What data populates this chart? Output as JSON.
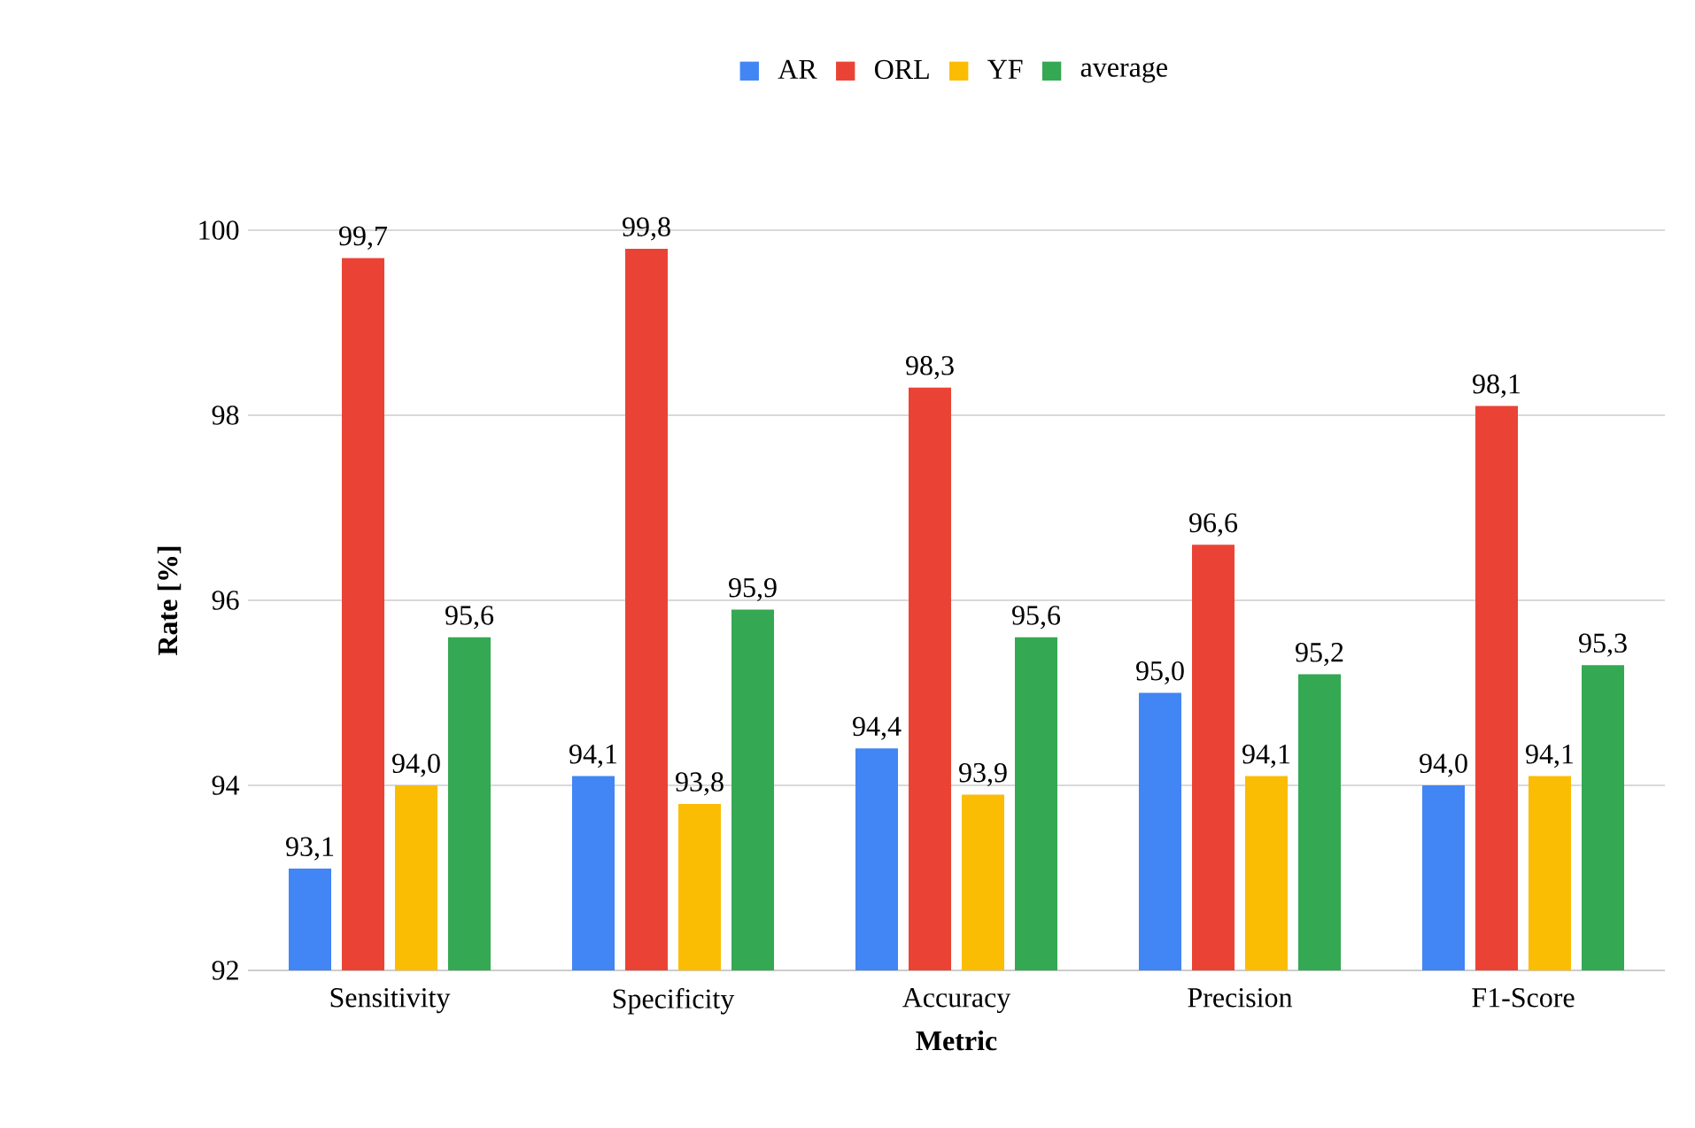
{
  "chart_data": {
    "type": "bar",
    "xlabel": "Metric",
    "ylabel": "Rate [%]",
    "categories": [
      "Sensitivity",
      "Specificity",
      "Accuracy",
      "Precision",
      "F1-Score"
    ],
    "series": [
      {
        "name": "AR",
        "color": "#4285f4",
        "values": [
          93.1,
          94.1,
          94.4,
          95.0,
          94.0
        ],
        "value_labels": [
          "93,1",
          "94,1",
          "94,4",
          "95,0",
          "94,0"
        ]
      },
      {
        "name": "ORL",
        "color": "#ea4335",
        "values": [
          99.7,
          99.8,
          98.3,
          96.6,
          98.1
        ],
        "value_labels": [
          "99,7",
          "99,8",
          "98,3",
          "96,6",
          "98,1"
        ]
      },
      {
        "name": "YF",
        "color": "#fbbc04",
        "values": [
          94.0,
          93.8,
          93.9,
          94.1,
          94.1
        ],
        "value_labels": [
          "94,0",
          "93,8",
          "93,9",
          "94,1",
          "94,1"
        ]
      },
      {
        "name": "average",
        "color": "#34a853",
        "values": [
          95.6,
          95.9,
          95.6,
          95.2,
          95.3
        ],
        "value_labels": [
          "95,6",
          "95,9",
          "95,6",
          "95,2",
          "95,3"
        ]
      }
    ],
    "ylim": [
      92,
      100
    ],
    "yticks": [
      92,
      94,
      96,
      98,
      100
    ],
    "grid": "y",
    "legend": "top"
  }
}
